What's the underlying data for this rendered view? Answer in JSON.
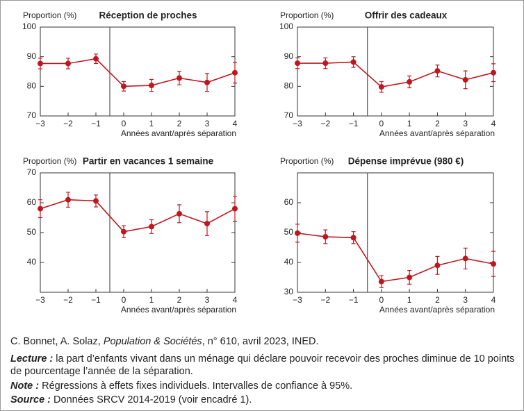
{
  "chart_data": [
    {
      "type": "line",
      "title": "Réception de proches",
      "ylabel": "Proportion (%)",
      "xlabel": "Années avant/après séparation",
      "x": [
        -3,
        -2,
        -1,
        0,
        1,
        2,
        3,
        4
      ],
      "values": [
        87.7,
        87.7,
        89.3,
        80.0,
        80.3,
        82.8,
        81.3,
        84.6
      ],
      "errors": [
        1.8,
        1.8,
        1.6,
        1.6,
        2.0,
        2.3,
        3.0,
        3.5
      ],
      "color": "#c0171f",
      "xlim": [
        -3,
        4
      ],
      "xticks": [
        {
          "value": -3,
          "label": "−3"
        },
        {
          "value": -2,
          "label": "−2"
        },
        {
          "value": -1,
          "label": "−1"
        },
        0,
        1,
        2,
        3,
        4
      ],
      "ylim": [
        70,
        100
      ],
      "yticks": [
        70,
        80,
        90,
        100
      ],
      "vline": -0.5
    },
    {
      "type": "line",
      "title": "Offrir des cadeaux",
      "ylabel": "Proportion (%)",
      "xlabel": "Années avant/après séparation",
      "x": [
        -3,
        -2,
        -1,
        0,
        1,
        2,
        3,
        4
      ],
      "values": [
        87.8,
        87.8,
        88.2,
        79.8,
        81.5,
        85.2,
        82.2,
        84.6
      ],
      "errors": [
        1.8,
        1.8,
        1.8,
        1.8,
        2.0,
        2.0,
        3.0,
        3.0
      ],
      "color": "#c0171f",
      "xlim": [
        -3,
        4
      ],
      "xticks": [
        {
          "value": -3,
          "label": "−3"
        },
        {
          "value": -2,
          "label": "−2"
        },
        {
          "value": -1,
          "label": "−1"
        },
        0,
        1,
        2,
        3,
        4
      ],
      "ylim": [
        70,
        100
      ],
      "yticks": [
        70,
        80,
        90,
        100
      ],
      "vline": -0.5
    },
    {
      "type": "line",
      "title": "Partir en vacances 1 semaine",
      "ylabel": "Proportion (%)",
      "xlabel": "Années avant/après séparation",
      "x": [
        -3,
        -2,
        -1,
        0,
        1,
        2,
        3,
        4
      ],
      "values": [
        58.0,
        61.0,
        60.6,
        50.3,
        52.0,
        56.3,
        53.0,
        58.0
      ],
      "errors": [
        3.0,
        2.5,
        2.0,
        2.0,
        2.3,
        3.0,
        4.0,
        4.2
      ],
      "color": "#c0171f",
      "xlim": [
        -3,
        4
      ],
      "xticks": [
        {
          "value": -3,
          "label": "−3"
        },
        {
          "value": -2,
          "label": "−2"
        },
        {
          "value": -1,
          "label": "−1"
        },
        0,
        1,
        2,
        3,
        4
      ],
      "ylim": [
        30,
        70
      ],
      "yticks": [
        40,
        50,
        60,
        70
      ],
      "vline": -0.5
    },
    {
      "type": "line",
      "title": "Dépense imprévue (980 €)",
      "ylabel": "Proportion (%)",
      "xlabel": "Années avant/après séparation",
      "x": [
        -3,
        -2,
        -1,
        0,
        1,
        2,
        3,
        4
      ],
      "values": [
        49.8,
        48.6,
        48.3,
        33.6,
        35.0,
        39.0,
        41.3,
        39.5
      ],
      "errors": [
        3.0,
        2.3,
        2.0,
        2.0,
        2.3,
        3.0,
        3.5,
        4.2
      ],
      "color": "#c0171f",
      "xlim": [
        -3,
        4
      ],
      "xticks": [
        {
          "value": -3,
          "label": "−3"
        },
        {
          "value": -2,
          "label": "−2"
        },
        {
          "value": -1,
          "label": "−1"
        },
        0,
        1,
        2,
        3,
        4
      ],
      "ylim": [
        30,
        70
      ],
      "yticks": [
        30,
        40,
        50,
        60
      ],
      "vline": -0.5
    }
  ],
  "citation": {
    "authors": "C. Bonnet, A. Solaz,",
    "journal": "Population & Sociétés",
    "rest": ", n° 610, avril 2023, INED."
  },
  "notes": [
    {
      "label": "Lecture :",
      "text": "la part d’enfants vivant dans un ménage qui déclare pouvoir recevoir des proches diminue de 10 points de pourcentage l’année de la séparation."
    },
    {
      "label": "Note :",
      "text": "Régressions à effets fixes individuels. Intervalles de confiance à 95%."
    },
    {
      "label": "Source :",
      "text": "Données SRCV 2014-2019 (voir encadré 1)."
    }
  ]
}
